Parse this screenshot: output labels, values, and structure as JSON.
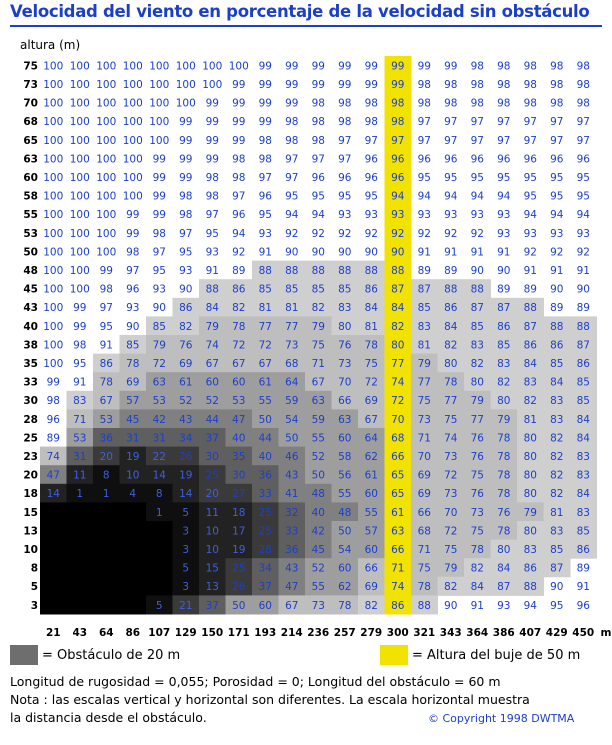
{
  "page": {
    "title": "Velocidad del viento en porcentaje de la velocidad sin obstáculo",
    "copyright": "© Copyright 1998 DWTMA"
  },
  "colors": {
    "title": "#1c3fc9",
    "text_blue": "#1c3fc9",
    "hub_highlight": "#f2e200",
    "obstacle_swatch": "#6e6e6e"
  },
  "legend": {
    "obstacle_label": "= Obstáculo de 20 m",
    "hub_label": "= Altura del buje de 50 m"
  },
  "notes": {
    "line1": "Longitud de rugosidad = 0,055; Porosidad = 0; Longitud del obstáculo = 60 m",
    "line2": "Nota : las escalas vertical y horizontal son diferentes. La escala horizontal muestra",
    "line3": "la distancia desde el obstáculo."
  },
  "chart_data": {
    "type": "heatmap",
    "title": "Velocidad del viento en porcentaje de la velocidad sin obstáculo",
    "ylabel": "altura (m)",
    "xlabel": "",
    "x_unit": "m",
    "highlight_x": 300,
    "x": [
      21,
      43,
      64,
      86,
      107,
      129,
      150,
      171,
      193,
      214,
      236,
      257,
      279,
      300,
      321,
      343,
      364,
      386,
      407,
      429,
      450
    ],
    "y": [
      75,
      73,
      70,
      68,
      65,
      63,
      60,
      58,
      55,
      53,
      50,
      48,
      45,
      43,
      40,
      38,
      35,
      33,
      30,
      28,
      25,
      23,
      20,
      18,
      15,
      13,
      10,
      8,
      5,
      3
    ],
    "values": [
      [
        100,
        100,
        100,
        100,
        100,
        100,
        100,
        100,
        99,
        99,
        99,
        99,
        99,
        99,
        99,
        99,
        98,
        98,
        98,
        98,
        98
      ],
      [
        100,
        100,
        100,
        100,
        100,
        100,
        100,
        99,
        99,
        99,
        99,
        99,
        99,
        99,
        98,
        98,
        98,
        98,
        98,
        98,
        98
      ],
      [
        100,
        100,
        100,
        100,
        100,
        100,
        99,
        99,
        99,
        99,
        98,
        98,
        98,
        98,
        98,
        98,
        98,
        98,
        98,
        98,
        98
      ],
      [
        100,
        100,
        100,
        100,
        100,
        99,
        99,
        99,
        99,
        98,
        98,
        98,
        98,
        98,
        97,
        97,
        97,
        97,
        97,
        97,
        97
      ],
      [
        100,
        100,
        100,
        100,
        100,
        99,
        99,
        99,
        98,
        98,
        98,
        97,
        97,
        97,
        97,
        97,
        97,
        97,
        97,
        97,
        97
      ],
      [
        100,
        100,
        100,
        100,
        99,
        99,
        99,
        98,
        98,
        97,
        97,
        97,
        96,
        96,
        96,
        96,
        96,
        96,
        96,
        96,
        96
      ],
      [
        100,
        100,
        100,
        100,
        99,
        99,
        98,
        98,
        97,
        97,
        96,
        96,
        96,
        96,
        95,
        95,
        95,
        95,
        95,
        95,
        95
      ],
      [
        100,
        100,
        100,
        100,
        99,
        98,
        98,
        97,
        96,
        95,
        95,
        95,
        95,
        94,
        94,
        94,
        94,
        94,
        95,
        95,
        95
      ],
      [
        100,
        100,
        100,
        99,
        99,
        98,
        97,
        96,
        95,
        94,
        94,
        93,
        93,
        93,
        93,
        93,
        93,
        93,
        94,
        94,
        94
      ],
      [
        100,
        100,
        100,
        99,
        98,
        97,
        95,
        94,
        93,
        92,
        92,
        92,
        92,
        92,
        92,
        92,
        92,
        93,
        93,
        93,
        93
      ],
      [
        100,
        100,
        100,
        98,
        97,
        95,
        93,
        92,
        91,
        90,
        90,
        90,
        90,
        90,
        91,
        91,
        91,
        91,
        92,
        92,
        92
      ],
      [
        100,
        100,
        99,
        97,
        95,
        93,
        91,
        89,
        88,
        88,
        88,
        88,
        88,
        88,
        89,
        89,
        90,
        90,
        91,
        91,
        91
      ],
      [
        100,
        100,
        98,
        96,
        93,
        90,
        88,
        86,
        85,
        85,
        85,
        85,
        86,
        87,
        87,
        88,
        88,
        89,
        89,
        90,
        90
      ],
      [
        100,
        99,
        97,
        93,
        90,
        86,
        84,
        82,
        81,
        81,
        82,
        83,
        84,
        84,
        85,
        86,
        87,
        87,
        88,
        89,
        89
      ],
      [
        100,
        99,
        95,
        90,
        85,
        82,
        79,
        78,
        77,
        77,
        79,
        80,
        81,
        82,
        83,
        84,
        85,
        86,
        87,
        88,
        88
      ],
      [
        100,
        98,
        91,
        85,
        79,
        76,
        74,
        72,
        72,
        73,
        75,
        76,
        78,
        80,
        81,
        82,
        83,
        85,
        86,
        86,
        87
      ],
      [
        100,
        95,
        86,
        78,
        72,
        69,
        67,
        67,
        67,
        68,
        71,
        73,
        75,
        77,
        79,
        80,
        82,
        83,
        84,
        85,
        86
      ],
      [
        99,
        91,
        78,
        69,
        63,
        61,
        60,
        60,
        61,
        64,
        67,
        70,
        72,
        74,
        77,
        78,
        80,
        82,
        83,
        84,
        85
      ],
      [
        98,
        83,
        67,
        57,
        53,
        52,
        52,
        53,
        55,
        59,
        63,
        66,
        69,
        72,
        75,
        77,
        79,
        80,
        82,
        83,
        85
      ],
      [
        96,
        71,
        53,
        45,
        42,
        43,
        44,
        47,
        50,
        54,
        59,
        63,
        67,
        70,
        73,
        75,
        77,
        79,
        81,
        83,
        84
      ],
      [
        89,
        53,
        36,
        31,
        31,
        34,
        37,
        40,
        44,
        50,
        55,
        60,
        64,
        68,
        71,
        74,
        76,
        78,
        80,
        82,
        84
      ],
      [
        74,
        31,
        20,
        19,
        22,
        26,
        30,
        35,
        40,
        46,
        52,
        58,
        62,
        66,
        70,
        73,
        76,
        78,
        80,
        82,
        83
      ],
      [
        47,
        11,
        8,
        10,
        14,
        19,
        25,
        30,
        36,
        43,
        50,
        56,
        61,
        65,
        69,
        72,
        75,
        78,
        80,
        82,
        83
      ],
      [
        14,
        1,
        1,
        4,
        8,
        14,
        20,
        27,
        33,
        41,
        48,
        55,
        60,
        65,
        69,
        73,
        76,
        78,
        80,
        82,
        84
      ],
      [
        null,
        null,
        null,
        null,
        1,
        5,
        11,
        18,
        25,
        32,
        40,
        48,
        55,
        61,
        66,
        70,
        73,
        76,
        79,
        81,
        83
      ],
      [
        null,
        null,
        null,
        null,
        null,
        3,
        10,
        17,
        25,
        33,
        42,
        50,
        57,
        63,
        68,
        72,
        75,
        78,
        80,
        83,
        85
      ],
      [
        null,
        null,
        null,
        null,
        null,
        3,
        10,
        19,
        28,
        36,
        45,
        54,
        60,
        66,
        71,
        75,
        78,
        80,
        83,
        85,
        86
      ],
      [
        null,
        null,
        null,
        null,
        null,
        5,
        15,
        25,
        34,
        43,
        52,
        60,
        66,
        71,
        75,
        79,
        82,
        84,
        86,
        87,
        89
      ],
      [
        null,
        null,
        null,
        null,
        null,
        3,
        13,
        26,
        37,
        47,
        55,
        62,
        69,
        74,
        78,
        82,
        84,
        87,
        88,
        90,
        91
      ],
      [
        null,
        null,
        null,
        null,
        5,
        21,
        37,
        50,
        60,
        67,
        73,
        78,
        82,
        86,
        88,
        90,
        91,
        93,
        94,
        95,
        96
      ]
    ]
  }
}
